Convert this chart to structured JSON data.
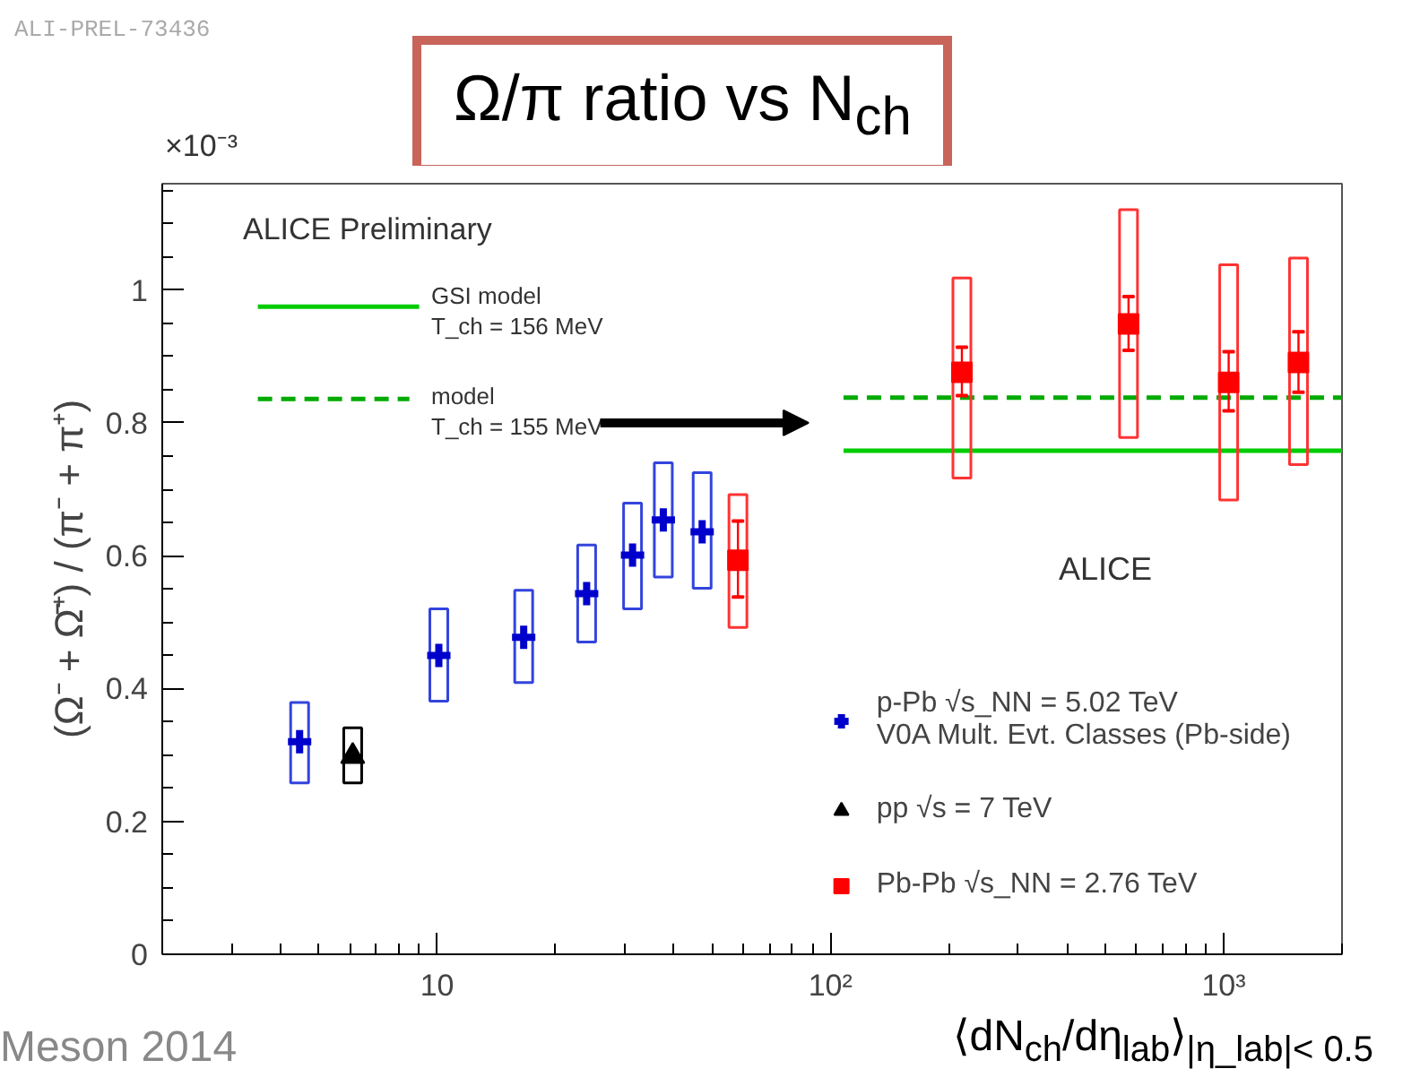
{
  "chart_data": {
    "type": "scatter",
    "title": "Ω/π ratio vs N$_{ch}$",
    "xlabel": "⟨dN$_{ch}$/dη$_{lab}$⟩$_{|η_lab|< 0.5}$",
    "ylabel": "(Ω⁻ + Ω̄⁺) / (π⁻ + π⁺)",
    "annotations": [
      "ALI-PREL-73436",
      "Meson 2014",
      "×10⁻³",
      "ALICE Preliminary",
      "GSI model",
      "T_ch = 156 MeV",
      "model",
      "T_ch = 155 MeV",
      "ALICE"
    ],
    "xlim": [
      2,
      2000
    ],
    "ylim": [
      0,
      1.16
    ],
    "log": "x",
    "xticks": [
      10,
      {
        "value": 100,
        "label": "10²"
      },
      {
        "value": 1000,
        "label": "10³"
      }
    ],
    "yticks": [
      0,
      0.2,
      0.4,
      0.6,
      0.8,
      1
    ],
    "grid": false,
    "legend": "right",
    "series": [
      {
        "type": "line",
        "color": "#00cc00",
        "line_style": "solid",
        "marker": "none",
        "x": [
          3.5,
          9
        ],
        "values": [
          0.975,
          0.975
        ]
      },
      {
        "type": "line",
        "color": "#00cc00",
        "line_style": "solid",
        "marker": "none",
        "x": [
          108,
          2000
        ],
        "values": [
          0.758,
          0.758
        ]
      },
      {
        "type": "line",
        "color": "#00aa00",
        "line_style": "dashed",
        "marker": "none",
        "x": [
          3.5,
          8.5
        ],
        "values": [
          0.836,
          0.836
        ]
      },
      {
        "type": "line",
        "color": "#00aa00",
        "line_style": "dashed",
        "marker": "none",
        "x": [
          108,
          2000
        ],
        "values": [
          0.838,
          0.838
        ]
      },
      {
        "type": "bar",
        "color": "#3344dd",
        "x": [
          4.47,
          10.1,
          16.6,
          24,
          31.4,
          37.6,
          47.2
        ],
        "base": [
          0.258,
          0.381,
          0.409,
          0.47,
          0.52,
          0.568,
          0.551
        ],
        "values": [
          0.121,
          0.139,
          0.139,
          0.146,
          0.159,
          0.172,
          0.174
        ]
      },
      {
        "type": "bar",
        "color": "#000000",
        "x": [
          6.1
        ],
        "base": [
          0.258
        ],
        "values": [
          0.083
        ]
      },
      {
        "type": "bar",
        "color": "#ff3333",
        "x": [
          58.2,
          216,
          573,
          1030,
          1550
        ],
        "base": [
          0.492,
          0.717,
          0.778,
          0.684,
          0.737
        ],
        "values": [
          0.2,
          0.301,
          0.343,
          0.354,
          0.311
        ]
      },
      {
        "name": "p-Pb √s_NN = 5.02 TeV\nV0A Mult. Evt. Classes (Pb-side)",
        "color": "#0000cc",
        "marker": "cross",
        "x": [
          4.47,
          10.1,
          16.6,
          24,
          31.4,
          37.6,
          47.2
        ],
        "values": [
          0.32,
          0.45,
          0.477,
          0.543,
          0.601,
          0.654,
          0.636
        ]
      },
      {
        "name": "pp √s = 7 TeV",
        "color": "#000000",
        "marker": "triangle",
        "x": [
          6.1
        ],
        "values": [
          0.298
        ]
      },
      {
        "name": "Pb-Pb √s_NN = 2.76 TeV",
        "color": "#ff0000",
        "marker": "square",
        "x": [
          58.2,
          216,
          573,
          1030,
          1550
        ],
        "values": [
          0.593,
          0.876,
          0.949,
          0.861,
          0.891
        ],
        "errors": [
          [
            0.538,
            0.652
          ],
          [
            0.841,
            0.914
          ],
          [
            0.909,
            0.99
          ],
          [
            0.818,
            0.907
          ],
          [
            0.846,
            0.937
          ]
        ]
      }
    ]
  }
}
